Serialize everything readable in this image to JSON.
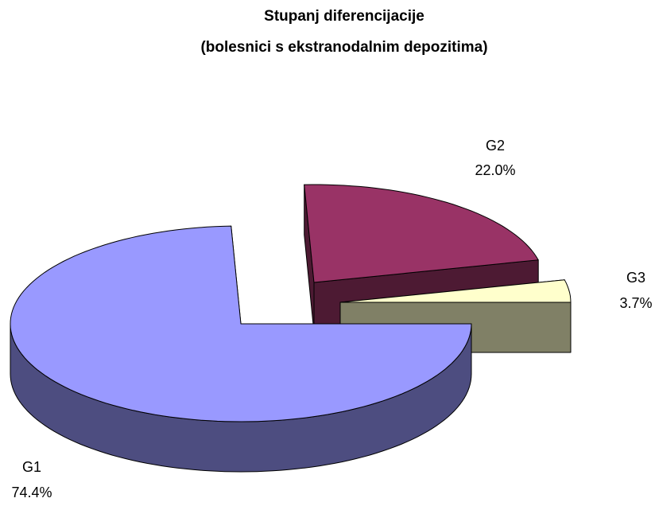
{
  "chart_data": {
    "type": "pie3d",
    "title": "Stupanj diferencijacije",
    "subtitle": "(bolesnici s ekstranodalnim depozitima)",
    "categories": [
      "G1",
      "G2",
      "G3"
    ],
    "values": [
      74.4,
      22.0,
      3.7
    ],
    "value_labels": [
      "74.4%",
      "22.0%",
      "3.7%"
    ],
    "colors": [
      "#9999ff",
      "#993366",
      "#ffffcc"
    ]
  }
}
